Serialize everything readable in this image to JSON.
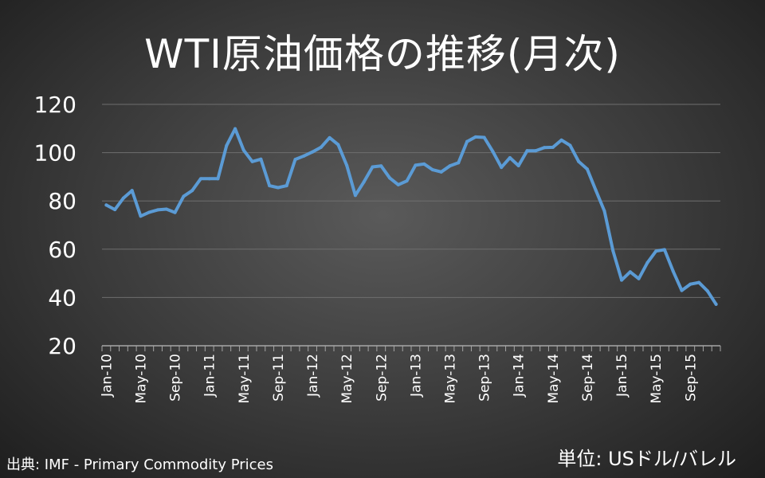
{
  "title": "WTI原油価格の推移(月次)",
  "source": "出典: IMF - Primary Commodity Prices",
  "unit": "単位: USドル/バレル",
  "colors": {
    "line": "#5b9bd5",
    "grid": "#6e6e6e",
    "axis": "#a6a6a6"
  },
  "chart_data": {
    "type": "line",
    "title": "WTI原油価格の推移(月次)",
    "ylabel": "",
    "xlabel": "",
    "ylim": [
      20,
      120
    ],
    "yticks": [
      20,
      40,
      60,
      80,
      100,
      120
    ],
    "grid": true,
    "categories": [
      "Jan-10",
      "Feb-10",
      "Mar-10",
      "Apr-10",
      "May-10",
      "Jun-10",
      "Jul-10",
      "Aug-10",
      "Sep-10",
      "Oct-10",
      "Nov-10",
      "Dec-10",
      "Jan-11",
      "Feb-11",
      "Mar-11",
      "Apr-11",
      "May-11",
      "Jun-11",
      "Jul-11",
      "Aug-11",
      "Sep-11",
      "Oct-11",
      "Nov-11",
      "Dec-11",
      "Jan-12",
      "Feb-12",
      "Mar-12",
      "Apr-12",
      "May-12",
      "Jun-12",
      "Jul-12",
      "Aug-12",
      "Sep-12",
      "Oct-12",
      "Nov-12",
      "Dec-12",
      "Jan-13",
      "Feb-13",
      "Mar-13",
      "Apr-13",
      "May-13",
      "Jun-13",
      "Jul-13",
      "Aug-13",
      "Sep-13",
      "Oct-13",
      "Nov-13",
      "Dec-13",
      "Jan-14",
      "Feb-14",
      "Mar-14",
      "Apr-14",
      "May-14",
      "Jun-14",
      "Jul-14",
      "Aug-14",
      "Sep-14",
      "Oct-14",
      "Nov-14",
      "Dec-14",
      "Jan-15",
      "Feb-15",
      "Mar-15",
      "Apr-15",
      "May-15",
      "Jun-15",
      "Jul-15",
      "Aug-15",
      "Sep-15",
      "Oct-15",
      "Nov-15",
      "Dec-15"
    ],
    "tick_labels": [
      "Jan-10",
      "May-10",
      "Sep-10",
      "Jan-11",
      "May-11",
      "Sep-11",
      "Jan-12",
      "May-12",
      "Sep-12",
      "Jan-13",
      "May-13",
      "Sep-13",
      "Jan-14",
      "May-14",
      "Sep-14",
      "Jan-15",
      "May-15",
      "Sep-15"
    ],
    "series": [
      {
        "values": [
          78.3,
          76.4,
          81.2,
          84.3,
          73.7,
          75.3,
          76.3,
          76.6,
          75.2,
          81.9,
          84.3,
          89.2,
          89.2,
          89.2,
          102.9,
          109.9,
          101.0,
          96.3,
          97.3,
          86.3,
          85.5,
          86.3,
          97.2,
          98.6,
          100.3,
          102.2,
          106.2,
          103.3,
          94.7,
          82.3,
          87.9,
          94.1,
          94.5,
          89.5,
          86.7,
          88.3,
          94.8,
          95.3,
          92.9,
          92.0,
          94.5,
          95.8,
          104.6,
          106.5,
          106.3,
          100.5,
          93.9,
          97.9,
          94.6,
          100.8,
          100.8,
          102.1,
          102.2,
          105.2,
          103.0,
          96.3,
          93.2,
          84.4,
          75.8,
          59.3,
          47.2,
          50.6,
          47.8,
          54.4,
          59.2,
          59.8,
          50.9,
          42.9,
          45.5,
          46.2,
          42.7,
          37.2
        ]
      }
    ]
  }
}
